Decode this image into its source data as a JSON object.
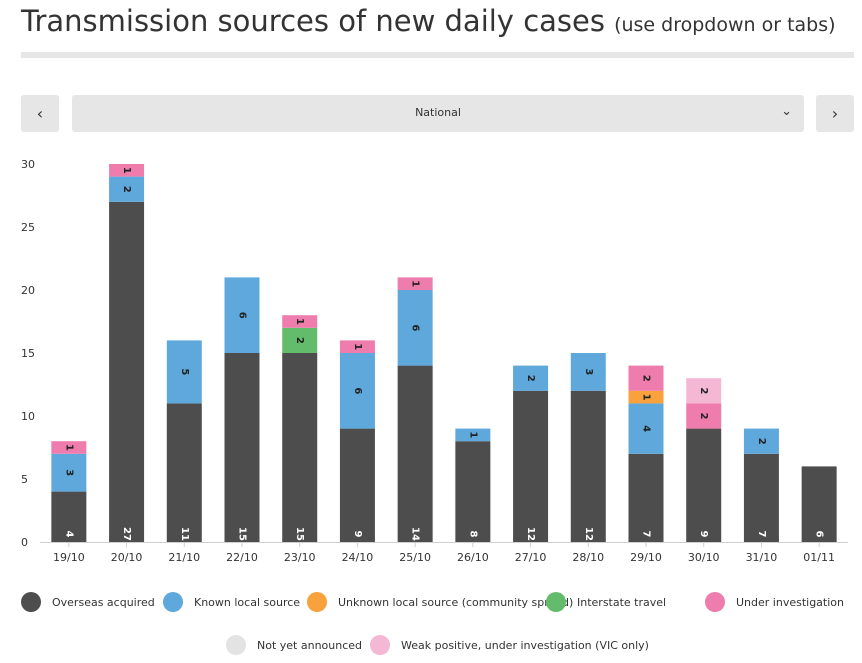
{
  "header": {
    "title": "Transmission sources of new daily cases",
    "subtitle": "(use dropdown or tabs)"
  },
  "controls": {
    "prev_label": "‹",
    "next_label": "›",
    "dropdown_value": "National",
    "dropdown_chevron": "⌄"
  },
  "colors": {
    "overseas": "#4d4d4d",
    "known_local": "#5fa8dc",
    "unknown_local": "#f9a13c",
    "interstate": "#62bc6b",
    "under_investigation": "#ee7cad",
    "not_yet_announced": "#e3e3e3",
    "weak_positive": "#f5b8d4"
  },
  "chart_data": {
    "type": "bar",
    "stacked": true,
    "categories": [
      "19/10",
      "20/10",
      "21/10",
      "22/10",
      "23/10",
      "24/10",
      "25/10",
      "26/10",
      "27/10",
      "28/10",
      "29/10",
      "30/10",
      "31/10",
      "01/11"
    ],
    "series": [
      {
        "name": "Overseas acquired",
        "key": "overseas",
        "values": [
          4,
          27,
          11,
          15,
          15,
          9,
          14,
          8,
          12,
          12,
          7,
          9,
          7,
          6
        ]
      },
      {
        "name": "Known local source",
        "key": "known_local",
        "values": [
          3,
          2,
          5,
          6,
          0,
          6,
          6,
          1,
          2,
          3,
          4,
          0,
          2,
          0
        ]
      },
      {
        "name": "Unknown local source (community spread)",
        "key": "unknown_local",
        "values": [
          0,
          0,
          0,
          0,
          0,
          0,
          0,
          0,
          0,
          0,
          1,
          0,
          0,
          0
        ]
      },
      {
        "name": "Interstate travel",
        "key": "interstate",
        "values": [
          0,
          0,
          0,
          0,
          2,
          0,
          0,
          0,
          0,
          0,
          0,
          0,
          0,
          0
        ]
      },
      {
        "name": "Under investigation",
        "key": "under_investigation",
        "values": [
          1,
          1,
          0,
          0,
          1,
          1,
          1,
          0,
          0,
          0,
          2,
          2,
          0,
          0
        ]
      },
      {
        "name": "Not yet announced",
        "key": "not_yet_announced",
        "values": [
          0,
          0,
          0,
          0,
          0,
          0,
          0,
          0,
          0,
          0,
          0,
          0,
          0,
          0
        ]
      },
      {
        "name": "Weak positive, under investigation (VIC only)",
        "key": "weak_positive",
        "values": [
          0,
          0,
          0,
          0,
          0,
          0,
          0,
          0,
          0,
          0,
          0,
          2,
          0,
          0
        ]
      }
    ],
    "yticks": [
      0,
      5,
      10,
      15,
      20,
      25,
      30
    ],
    "ylim": [
      0,
      30
    ],
    "title": "",
    "xlabel": "",
    "ylabel": ""
  },
  "legend": {
    "row1": [
      {
        "label": "Overseas acquired",
        "key": "overseas"
      },
      {
        "label": "Known local source",
        "key": "known_local"
      },
      {
        "label": "Unknown local source (community spread)",
        "key": "unknown_local"
      },
      {
        "label": "Interstate travel",
        "key": "interstate"
      },
      {
        "label": "Under investigation",
        "key": "under_investigation"
      }
    ],
    "row2": [
      {
        "label": "Not yet announced",
        "key": "not_yet_announced"
      },
      {
        "label": "Weak positive, under investigation (VIC only)",
        "key": "weak_positive"
      }
    ]
  }
}
